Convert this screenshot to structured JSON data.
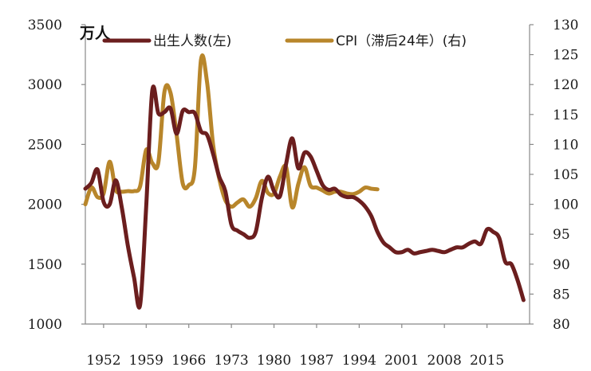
{
  "chart_data": {
    "type": "line",
    "unit_label": "万人",
    "x_ticks": [
      "1952",
      "1959",
      "1966",
      "1973",
      "1980",
      "1987",
      "1994",
      "2001",
      "2008",
      "2015"
    ],
    "xlim": [
      1949,
      2022
    ],
    "left_axis": {
      "ylim": [
        1000,
        3500
      ],
      "ticks": [
        "1000",
        "1500",
        "2000",
        "2500",
        "3000",
        "3500"
      ]
    },
    "right_axis": {
      "ylim": [
        80,
        130
      ],
      "ticks": [
        "80",
        "85",
        "90",
        "95",
        "100",
        "105",
        "110",
        "115",
        "120",
        "125",
        "130"
      ]
    },
    "legend_placement": "top",
    "series": [
      {
        "name": "出生人数(左)",
        "axis": "left",
        "color": "#6b1e1e",
        "x": [
          1949,
          1950,
          1951,
          1952,
          1953,
          1954,
          1955,
          1956,
          1957,
          1958,
          1959,
          1960,
          1961,
          1962,
          1963,
          1964,
          1965,
          1966,
          1967,
          1968,
          1969,
          1970,
          1971,
          1972,
          1973,
          1974,
          1975,
          1976,
          1977,
          1978,
          1979,
          1980,
          1981,
          1982,
          1983,
          1984,
          1985,
          1986,
          1987,
          1988,
          1989,
          1990,
          1991,
          1992,
          1993,
          1994,
          1995,
          1996,
          1997,
          1998,
          1999,
          2000,
          2001,
          2002,
          2003,
          2004,
          2005,
          2006,
          2007,
          2008,
          2009,
          2010,
          2011,
          2012,
          2013,
          2014,
          2015,
          2016,
          2017,
          2018,
          2019,
          2020,
          2021
        ],
        "values": [
          2130,
          2180,
          2290,
          2020,
          2000,
          2200,
          1970,
          1650,
          1390,
          1160,
          1980,
          2950,
          2760,
          2770,
          2800,
          2590,
          2780,
          2770,
          2760,
          2610,
          2580,
          2420,
          2230,
          2110,
          1830,
          1780,
          1750,
          1720,
          1770,
          2050,
          2230,
          2110,
          2070,
          2340,
          2550,
          2300,
          2430,
          2400,
          2280,
          2160,
          2120,
          2130,
          2080,
          2060,
          2060,
          2030,
          1980,
          1900,
          1770,
          1680,
          1640,
          1600,
          1600,
          1620,
          1590,
          1600,
          1610,
          1620,
          1610,
          1600,
          1620,
          1640,
          1640,
          1670,
          1690,
          1670,
          1790,
          1770,
          1720,
          1520,
          1500,
          1370,
          1200
        ],
        "smooth": true
      },
      {
        "name": "CPI（滞后24年）(右)",
        "axis": "right",
        "color": "#b8862b",
        "x": [
          1949,
          1950,
          1951,
          1952,
          1953,
          1954,
          1955,
          1956,
          1957,
          1958,
          1959,
          1960,
          1961,
          1962,
          1963,
          1964,
          1965,
          1966,
          1967,
          1968,
          1969,
          1970,
          1971,
          1972,
          1973,
          1974,
          1975,
          1976,
          1977,
          1978,
          1979,
          1980,
          1981,
          1982,
          1983,
          1984,
          1985,
          1986,
          1987,
          1988,
          1989,
          1990,
          1991,
          1992,
          1993,
          1994,
          1995,
          1996,
          1997
        ],
        "values": [
          100.0,
          102.8,
          101.2,
          101.8,
          107.1,
          102.4,
          102.1,
          102.2,
          102.2,
          103.0,
          109.1,
          106.9,
          107.0,
          118.8,
          118.6,
          111.6,
          103.5,
          103.2,
          106.1,
          124.1,
          120.4,
          109.9,
          104.3,
          100.7,
          99.6,
          100.3,
          100.8,
          99.6,
          101.0,
          103.9,
          101.9,
          101.8,
          104.7,
          106.2,
          99.5,
          103.4,
          106.2,
          103.1,
          102.8,
          102.3,
          101.8,
          102.1,
          102.1,
          101.8,
          101.7,
          102.1,
          102.8,
          102.6,
          102.5
        ],
        "smooth": true
      }
    ]
  }
}
